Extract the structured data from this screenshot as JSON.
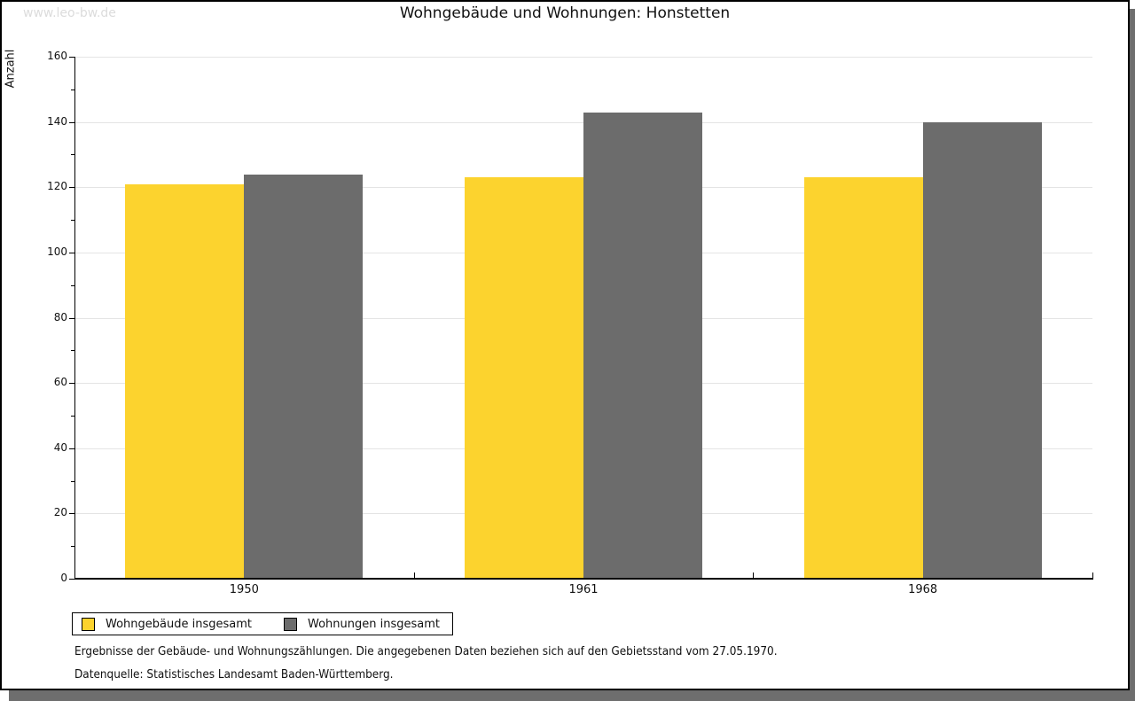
{
  "watermark": "www.leo-bw.de",
  "title": "Wohngebäude und Wohnungen: Honstetten",
  "chart_data": {
    "type": "bar",
    "title": "Wohngebäude und Wohnungen: Honstetten",
    "ylabel": "Anzahl",
    "xlabel": "",
    "categories": [
      "1950",
      "1961",
      "1968"
    ],
    "series": [
      {
        "name": "Wohngebäude insgesamt",
        "color": "#fcd32e",
        "values": [
          121,
          123,
          123
        ]
      },
      {
        "name": "Wohnungen insgesamt",
        "color": "#6c6c6c",
        "values": [
          124,
          143,
          140
        ]
      }
    ],
    "ylim": [
      0,
      160
    ],
    "yticks": [
      0,
      20,
      40,
      60,
      80,
      100,
      120,
      140,
      160
    ],
    "minor_ytick_step": 10,
    "grid": true,
    "legend_position": "bottom-left",
    "gridline_color": "#e4e4e4"
  },
  "footer": {
    "line1": "Ergebnisse der Gebäude- und Wohnungszählungen. Die angegebenen Daten beziehen sich auf den Gebietsstand vom 27.05.1970.",
    "line2": "Datenquelle: Statistisches Landesamt Baden-Württemberg."
  }
}
